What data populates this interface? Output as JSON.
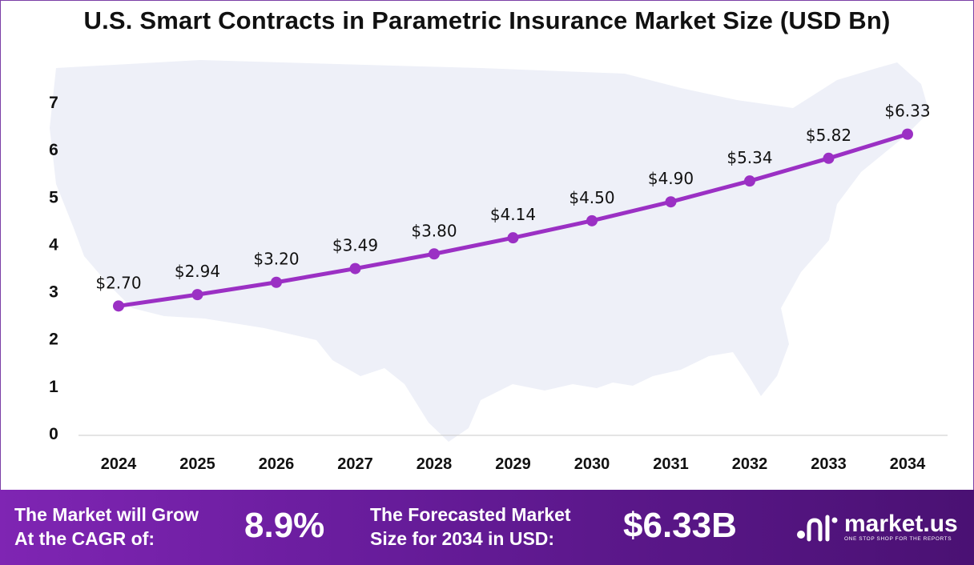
{
  "title": "U.S. Smart Contracts in Parametric Insurance Market Size (USD Bn)",
  "chart_data": {
    "type": "line",
    "title": "U.S. Smart Contracts in Parametric Insurance Market Size (USD Bn)",
    "categories": [
      "2024",
      "2025",
      "2026",
      "2027",
      "2028",
      "2029",
      "2030",
      "2031",
      "2032",
      "2033",
      "2034"
    ],
    "values": [
      2.7,
      2.94,
      3.2,
      3.49,
      3.8,
      4.14,
      4.5,
      4.9,
      5.34,
      5.82,
      6.33
    ],
    "data_labels": [
      "$2.70",
      "$2.94",
      "$3.20",
      "$3.49",
      "$3.80",
      "$4.14",
      "$4.50",
      "$4.90",
      "$5.34",
      "$5.82",
      "$6.33"
    ],
    "yticks": [
      "0",
      "1",
      "2",
      "3",
      "4",
      "5",
      "6",
      "7"
    ],
    "ylim": [
      0,
      7
    ],
    "grid": false,
    "line_color": "#9b30c4",
    "background_shape": "us-map-silhouette"
  },
  "footer": {
    "cagr_text_line1": "The Market will Grow",
    "cagr_text_line2": "At the CAGR of:",
    "cagr_value": "8.9%",
    "forecast_text_line1": "The Forecasted Market",
    "forecast_text_line2": "Size for 2034 in USD:",
    "forecast_value": "$6.33B",
    "brand_name": "market.us",
    "brand_tagline": "ONE STOP SHOP FOR THE REPORTS"
  },
  "colors": {
    "accent": "#9b30c4",
    "footer_start": "#7f25b3",
    "footer_end": "#4a1173",
    "map": "#eef0f8"
  }
}
